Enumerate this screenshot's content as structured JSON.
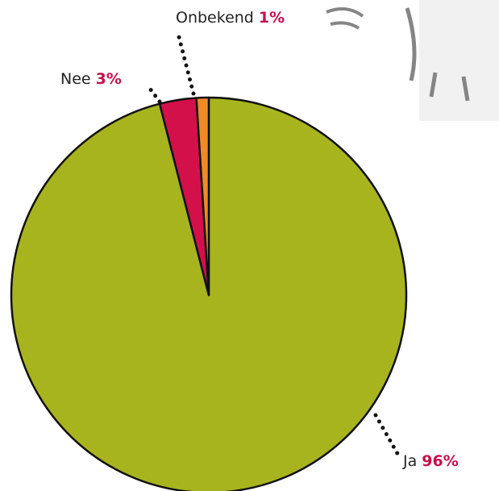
{
  "chart_data": {
    "type": "pie",
    "categories": [
      "Ja",
      "Nee",
      "Onbekend"
    ],
    "values": [
      96,
      3,
      1
    ],
    "value_labels": [
      "96%",
      "3%",
      "1%"
    ],
    "colors": [
      "#a8b41e",
      "#d4104a",
      "#f08a24"
    ]
  }
}
